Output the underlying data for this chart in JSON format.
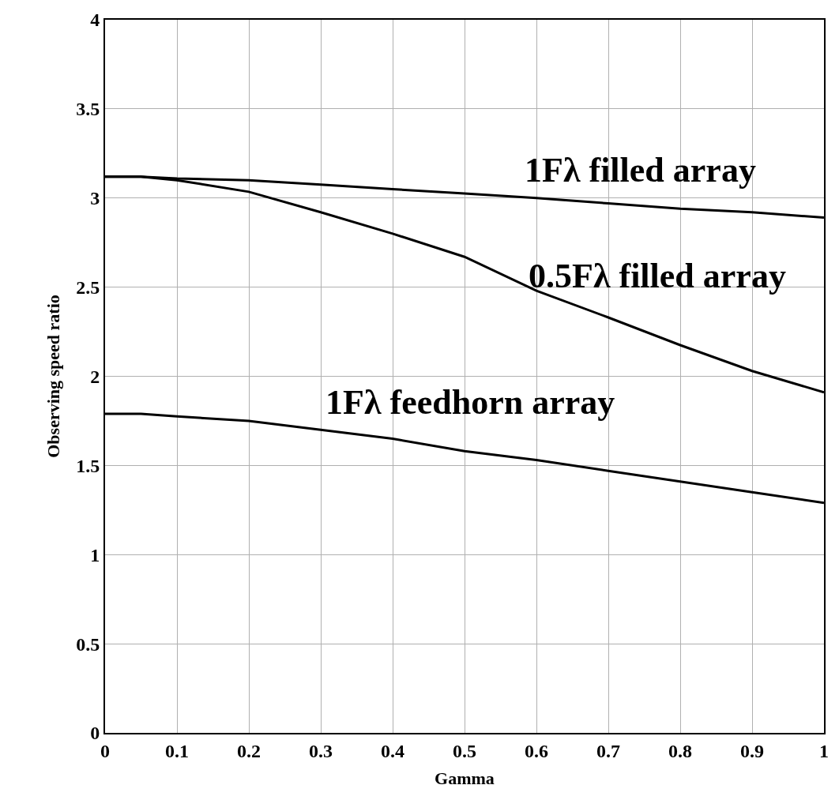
{
  "chart_data": {
    "type": "line",
    "xlabel": "Gamma",
    "ylabel": "Observing speed ratio",
    "x": [
      0,
      0.05,
      0.1,
      0.2,
      0.3,
      0.4,
      0.5,
      0.6,
      0.7,
      0.8,
      0.9,
      1
    ],
    "series": [
      {
        "name": "1Fλ filled array",
        "color": "#000000",
        "values": [
          3.12,
          3.12,
          3.11,
          3.1,
          3.075,
          3.05,
          3.025,
          3.0,
          2.97,
          2.94,
          2.92,
          2.89
        ]
      },
      {
        "name": "0.5Fλ filled array",
        "color": "#000000",
        "values": [
          3.12,
          3.12,
          3.1,
          3.035,
          2.92,
          2.8,
          2.67,
          2.48,
          2.33,
          2.175,
          2.03,
          1.91
        ]
      },
      {
        "name": "1Fλ feedhorn array",
        "color": "#000000",
        "values": [
          1.79,
          1.79,
          1.775,
          1.75,
          1.7,
          1.65,
          1.58,
          1.53,
          1.47,
          1.41,
          1.35,
          1.29
        ]
      }
    ],
    "xlim": [
      0,
      1
    ],
    "xticks": [
      0,
      0.1,
      0.2,
      0.3,
      0.4,
      0.5,
      0.6,
      0.7,
      0.8,
      0.9,
      1
    ],
    "ylim": [
      0,
      4
    ],
    "yticks": [
      0,
      0.5,
      1,
      1.5,
      2,
      2.5,
      3,
      3.5,
      4
    ],
    "grid": true,
    "legend": false,
    "marker": "none",
    "line_style": "solid"
  }
}
